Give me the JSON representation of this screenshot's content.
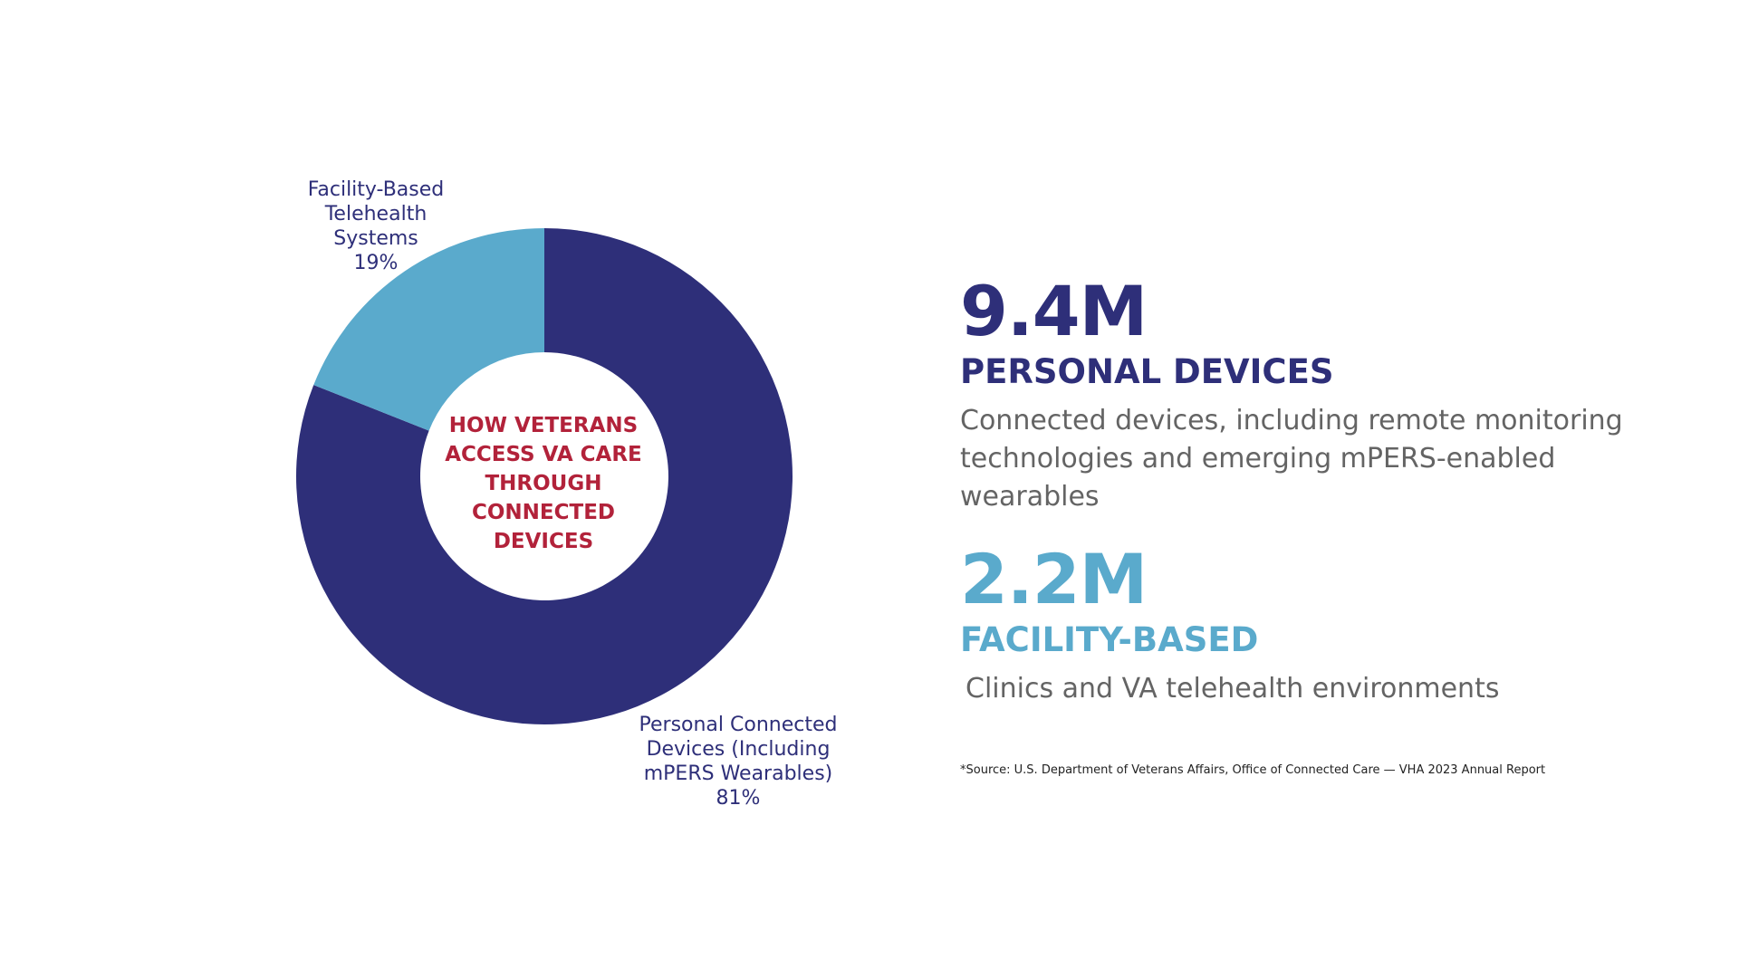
{
  "chart_data": {
    "type": "pie",
    "variant": "donut",
    "center_title": "HOW VETERANS ACCESS VA CARE THROUGH CONNECTED DEVICES",
    "center_title_lines": [
      "HOW VETERANS",
      "ACCESS VA CARE",
      "THROUGH",
      "CONNECTED",
      "DEVICES"
    ],
    "slices": [
      {
        "label": "Personal Connected Devices (Including mPERS Wearables)",
        "label_lines": [
          "Personal Connected",
          "Devices (Including",
          "mPERS Wearables)"
        ],
        "value": 81,
        "value_label": "81%",
        "color": "#2e2f79"
      },
      {
        "label": "Facility-Based Telehealth Systems",
        "label_lines": [
          "Facility-Based",
          "Telehealth",
          "Systems"
        ],
        "value": 19,
        "value_label": "19%",
        "color": "#5aaacc"
      }
    ]
  },
  "stats": {
    "personal": {
      "value": "9.4M",
      "heading": "PERSONAL DEVICES",
      "description": "Connected devices, including remote monitoring technologies and emerging mPERS-enabled wearables",
      "color": "#2e2f79"
    },
    "facility": {
      "value": "2.2M",
      "heading": "FACILITY-BASED",
      "description": "Clinics and VA telehealth environments",
      "color": "#5aaacc"
    }
  },
  "source_note": "*Source: U.S. Department of Veterans Affairs, Office of Connected Care — VHA 2023 Annual Report"
}
